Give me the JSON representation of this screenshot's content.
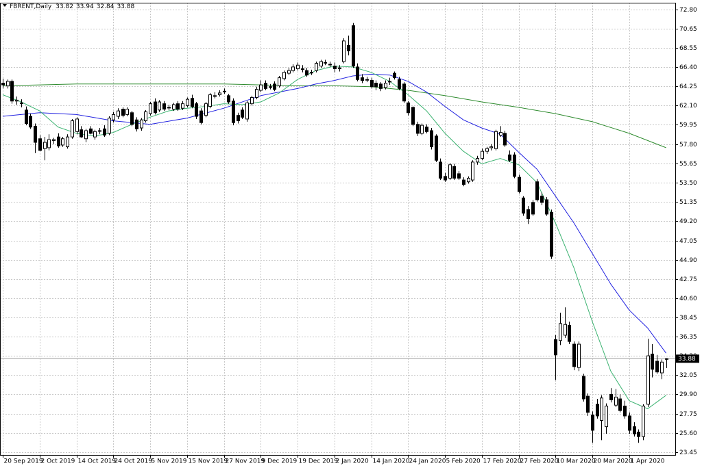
{
  "chart_data": {
    "type": "candlestick",
    "title": "FBRENT,Daily",
    "header_values": [
      33.82,
      33.94,
      32.84,
      33.88
    ],
    "last_price": 33.88,
    "grid": true,
    "up_color": "#ffffff",
    "down_color": "#000000",
    "xlim": [
      -0.6,
      146
    ],
    "ylim": [
      23.15,
      73.56
    ],
    "xticks": [
      {
        "value": 0,
        "label": "20 Sep 2019"
      },
      {
        "value": 8,
        "label": "2 Oct 2019"
      },
      {
        "value": 16,
        "label": "14 Oct 2019"
      },
      {
        "value": 24,
        "label": "24 Oct 2019"
      },
      {
        "value": 32,
        "label": "5 Nov 2019"
      },
      {
        "value": 40,
        "label": "15 Nov 2019"
      },
      {
        "value": 48,
        "label": "27 Nov 2019"
      },
      {
        "value": 56,
        "label": "9 Dec 2019"
      },
      {
        "value": 64,
        "label": "19 Dec 2019"
      },
      {
        "value": 72,
        "label": "2 Jan 2020"
      },
      {
        "value": 80,
        "label": "14 Jan 2020"
      },
      {
        "value": 88,
        "label": "24 Jan 2020"
      },
      {
        "value": 96,
        "label": "5 Feb 2020"
      },
      {
        "value": 104,
        "label": "17 Feb 2020"
      },
      {
        "value": 112,
        "label": "27 Feb 2020"
      },
      {
        "value": 120,
        "label": "10 Mar 2020"
      },
      {
        "value": 128,
        "label": "20 Mar 2020"
      },
      {
        "value": 136,
        "label": "1 Apr 2020"
      }
    ],
    "yticks": [
      {
        "value": 72.8,
        "label": "72.80"
      },
      {
        "value": 70.65,
        "label": "70.65"
      },
      {
        "value": 68.55,
        "label": "68.55"
      },
      {
        "value": 66.4,
        "label": "66.40"
      },
      {
        "value": 64.25,
        "label": "64.25"
      },
      {
        "value": 62.1,
        "label": "62.10"
      },
      {
        "value": 59.95,
        "label": "59.95"
      },
      {
        "value": 57.8,
        "label": "57.80"
      },
      {
        "value": 55.65,
        "label": "55.65"
      },
      {
        "value": 53.5,
        "label": "53.50"
      },
      {
        "value": 51.35,
        "label": "51.35"
      },
      {
        "value": 49.2,
        "label": "49.20"
      },
      {
        "value": 47.05,
        "label": "47.05"
      },
      {
        "value": 44.9,
        "label": "44.90"
      },
      {
        "value": 42.75,
        "label": "42.75"
      },
      {
        "value": 40.6,
        "label": "40.60"
      },
      {
        "value": 38.45,
        "label": "38.45"
      },
      {
        "value": 36.35,
        "label": "36.35"
      },
      {
        "value": 34.2,
        "label": "34.20"
      },
      {
        "value": 32.05,
        "label": "32.05"
      },
      {
        "value": 29.9,
        "label": "29.90"
      },
      {
        "value": 27.75,
        "label": "27.75"
      },
      {
        "value": 25.6,
        "label": "25.60"
      },
      {
        "value": 23.45,
        "label": "23.45"
      }
    ],
    "ohlc": [
      [
        64.6,
        65.1,
        64.0,
        64.4
      ],
      [
        64.3,
        65.0,
        64.0,
        64.8
      ],
      [
        64.8,
        65.0,
        62.3,
        62.6
      ],
      [
        62.6,
        63.1,
        62.2,
        62.7
      ],
      [
        62.4,
        62.8,
        61.9,
        62.3
      ],
      [
        61.6,
        62.0,
        59.9,
        60.1
      ],
      [
        60.9,
        61.2,
        59.5,
        59.7
      ],
      [
        59.8,
        60.1,
        56.8,
        58.0
      ],
      [
        58.4,
        58.8,
        57.0,
        57.1
      ],
      [
        57.3,
        58.6,
        56.0,
        58.0
      ],
      [
        57.4,
        58.9,
        57.1,
        58.3
      ],
      [
        58.2,
        58.5,
        57.8,
        58.3
      ],
      [
        58.6,
        59.0,
        57.4,
        57.6
      ],
      [
        57.7,
        58.6,
        57.5,
        58.4
      ],
      [
        57.5,
        58.9,
        57.3,
        58.6
      ],
      [
        58.6,
        60.6,
        58.4,
        60.4
      ],
      [
        59.2,
        60.8,
        58.9,
        60.6
      ],
      [
        59.4,
        59.8,
        58.5,
        58.6
      ],
      [
        58.4,
        59.5,
        58.0,
        59.3
      ],
      [
        59.5,
        59.8,
        58.9,
        59.0
      ],
      [
        58.6,
        59.4,
        58.3,
        59.2
      ],
      [
        59.3,
        59.6,
        58.9,
        59.3
      ],
      [
        59.5,
        59.9,
        58.6,
        58.8
      ],
      [
        59.0,
        60.9,
        58.8,
        60.7
      ],
      [
        60.5,
        61.4,
        60.2,
        61.1
      ],
      [
        60.9,
        61.8,
        60.6,
        61.5
      ],
      [
        61.7,
        61.9,
        60.8,
        61.0
      ],
      [
        61.1,
        61.9,
        60.9,
        61.7
      ],
      [
        61.3,
        61.5,
        59.8,
        60.0
      ],
      [
        60.5,
        60.8,
        59.2,
        59.5
      ],
      [
        59.6,
        60.7,
        59.3,
        60.5
      ],
      [
        60.4,
        61.6,
        60.2,
        61.4
      ],
      [
        61.2,
        62.5,
        61.0,
        62.3
      ],
      [
        62.5,
        62.9,
        61.1,
        61.3
      ],
      [
        61.6,
        62.7,
        61.4,
        62.5
      ],
      [
        62.3,
        62.6,
        61.5,
        61.7
      ],
      [
        61.9,
        62.2,
        61.6,
        61.9
      ],
      [
        61.7,
        62.4,
        61.5,
        62.2
      ],
      [
        62.3,
        62.6,
        61.5,
        61.7
      ],
      [
        61.8,
        62.6,
        61.6,
        62.3
      ],
      [
        62.1,
        63.0,
        61.9,
        62.8
      ],
      [
        62.9,
        63.3,
        61.8,
        62.0
      ],
      [
        62.3,
        62.5,
        60.6,
        60.9
      ],
      [
        61.5,
        61.8,
        60.0,
        60.2
      ],
      [
        61.0,
        62.5,
        60.8,
        62.3
      ],
      [
        62.0,
        63.5,
        61.8,
        63.3
      ],
      [
        63.2,
        63.6,
        62.9,
        63.2
      ],
      [
        63.3,
        63.8,
        63.1,
        63.5
      ],
      [
        63.7,
        64.0,
        63.4,
        63.7
      ],
      [
        63.2,
        63.4,
        62.3,
        62.5
      ],
      [
        62.6,
        62.9,
        59.9,
        60.2
      ],
      [
        61.0,
        61.3,
        60.1,
        60.4
      ],
      [
        61.6,
        61.9,
        60.6,
        60.8
      ],
      [
        60.6,
        62.6,
        60.3,
        62.4
      ],
      [
        62.3,
        63.2,
        62.1,
        63.0
      ],
      [
        63.0,
        64.2,
        62.8,
        63.9
      ],
      [
        63.8,
        64.9,
        63.6,
        64.4
      ],
      [
        64.6,
        64.9,
        63.8,
        64.0
      ],
      [
        64.2,
        64.5,
        63.9,
        64.2
      ],
      [
        64.5,
        64.8,
        63.7,
        63.9
      ],
      [
        64.3,
        65.4,
        64.1,
        65.2
      ],
      [
        65.1,
        66.0,
        64.9,
        65.8
      ],
      [
        65.7,
        66.3,
        65.5,
        66.0
      ],
      [
        66.0,
        66.7,
        65.8,
        66.4
      ],
      [
        66.2,
        66.9,
        66.0,
        66.6
      ],
      [
        66.2,
        66.6,
        65.8,
        66.2
      ],
      [
        66.0,
        66.3,
        65.3,
        65.5
      ],
      [
        65.8,
        66.1,
        65.5,
        65.8
      ],
      [
        66.0,
        67.0,
        65.8,
        66.8
      ],
      [
        66.5,
        67.2,
        66.3,
        67.0
      ],
      [
        66.9,
        67.2,
        66.6,
        66.9
      ],
      [
        66.7,
        67.0,
        66.4,
        66.7
      ],
      [
        66.5,
        66.9,
        65.8,
        66.2
      ],
      [
        66.2,
        66.6,
        65.9,
        66.3
      ],
      [
        67.0,
        69.6,
        66.8,
        69.3
      ],
      [
        68.8,
        69.9,
        67.7,
        68.2
      ],
      [
        71.0,
        71.3,
        66.3,
        66.5
      ],
      [
        66.4,
        66.8,
        64.8,
        65.0
      ],
      [
        65.2,
        65.6,
        64.6,
        64.9
      ],
      [
        65.0,
        65.3,
        64.7,
        65.0
      ],
      [
        64.9,
        65.2,
        64.0,
        64.2
      ],
      [
        64.6,
        64.9,
        63.8,
        64.2
      ],
      [
        64.5,
        64.7,
        63.7,
        64.0
      ],
      [
        64.1,
        64.9,
        63.9,
        64.6
      ],
      [
        64.8,
        65.2,
        64.4,
        64.8
      ],
      [
        65.7,
        65.9,
        65.0,
        65.2
      ],
      [
        65.0,
        65.3,
        63.8,
        64.0
      ],
      [
        64.5,
        64.7,
        62.4,
        62.6
      ],
      [
        62.4,
        62.6,
        61.0,
        61.3
      ],
      [
        61.9,
        62.0,
        59.8,
        60.0
      ],
      [
        60.0,
        60.3,
        58.7,
        59.0
      ],
      [
        59.0,
        60.1,
        58.8,
        59.9
      ],
      [
        59.7,
        60.0,
        59.0,
        59.2
      ],
      [
        59.3,
        59.6,
        57.2,
        57.5
      ],
      [
        58.7,
        58.9,
        55.8,
        56.0
      ],
      [
        55.8,
        56.2,
        53.8,
        54.0
      ],
      [
        54.2,
        54.6,
        53.6,
        53.8
      ],
      [
        54.0,
        55.7,
        53.8,
        55.5
      ],
      [
        55.3,
        55.6,
        53.8,
        54.0
      ],
      [
        54.5,
        54.8,
        53.8,
        54.0
      ],
      [
        53.8,
        54.1,
        53.1,
        53.3
      ],
      [
        53.6,
        54.2,
        53.4,
        54.0
      ],
      [
        53.8,
        56.0,
        53.6,
        55.8
      ],
      [
        55.8,
        56.5,
        55.5,
        56.2
      ],
      [
        56.2,
        57.3,
        56.0,
        57.0
      ],
      [
        57.0,
        57.5,
        56.7,
        57.3
      ],
      [
        57.4,
        57.8,
        57.1,
        57.5
      ],
      [
        57.3,
        59.4,
        57.1,
        59.2
      ],
      [
        58.8,
        59.8,
        58.6,
        59.1
      ],
      [
        59.0,
        59.3,
        57.5,
        57.7
      ],
      [
        56.6,
        57.1,
        55.8,
        56.0
      ],
      [
        56.6,
        56.9,
        54.0,
        54.2
      ],
      [
        54.1,
        54.4,
        52.3,
        52.5
      ],
      [
        51.8,
        52.0,
        49.8,
        50.1
      ],
      [
        50.5,
        50.9,
        48.9,
        49.5
      ],
      [
        51.3,
        51.6,
        49.8,
        50.0
      ],
      [
        53.6,
        53.9,
        51.4,
        51.6
      ],
      [
        52.0,
        52.4,
        51.0,
        51.3
      ],
      [
        51.6,
        51.9,
        49.8,
        50.0
      ],
      [
        50.2,
        50.5,
        45.0,
        45.3
      ],
      [
        36.0,
        36.5,
        31.5,
        34.3
      ],
      [
        35.9,
        39.0,
        35.4,
        37.8
      ],
      [
        36.5,
        39.6,
        36.2,
        37.7
      ],
      [
        37.6,
        38.0,
        35.5,
        35.8
      ],
      [
        35.5,
        35.8,
        32.6,
        33.0
      ],
      [
        32.9,
        35.8,
        32.5,
        35.5
      ],
      [
        31.9,
        32.2,
        29.1,
        29.4
      ],
      [
        29.7,
        30.0,
        27.5,
        27.9
      ],
      [
        27.6,
        28.0,
        24.5,
        25.9
      ],
      [
        28.8,
        29.4,
        27.2,
        27.5
      ],
      [
        27.0,
        29.8,
        24.8,
        29.5
      ],
      [
        26.3,
        28.9,
        25.5,
        28.6
      ],
      [
        29.9,
        30.6,
        29.0,
        29.3
      ],
      [
        28.7,
        30.5,
        28.5,
        29.6
      ],
      [
        29.4,
        29.9,
        27.9,
        28.1
      ],
      [
        28.6,
        29.2,
        27.2,
        27.5
      ],
      [
        27.5,
        27.9,
        25.5,
        25.9
      ],
      [
        26.3,
        26.8,
        25.2,
        25.5
      ],
      [
        25.7,
        26.0,
        24.5,
        25.2
      ],
      [
        25.2,
        28.8,
        24.8,
        28.6
      ],
      [
        28.8,
        36.1,
        28.5,
        34.2
      ],
      [
        34.4,
        35.5,
        31.8,
        32.7
      ],
      [
        33.6,
        34.3,
        32.2,
        32.4
      ],
      [
        32.3,
        33.8,
        31.6,
        33.5
      ],
      [
        33.82,
        33.94,
        32.84,
        33.88
      ]
    ],
    "lines": [
      {
        "color": "#2e8b2e",
        "x": [
          0,
          8,
          16,
          24,
          32,
          40,
          48,
          56,
          64,
          72,
          80,
          88,
          96,
          104,
          112,
          120,
          128,
          136,
          144
        ],
        "values": [
          64.3,
          64.4,
          64.5,
          64.5,
          64.5,
          64.5,
          64.5,
          64.4,
          64.3,
          64.3,
          64.2,
          63.8,
          63.2,
          62.5,
          61.9,
          61.2,
          60.3,
          59.0,
          57.4
        ]
      },
      {
        "color": "#2020e0",
        "x": [
          0,
          8,
          16,
          24,
          32,
          40,
          48,
          56,
          64,
          68,
          72,
          76,
          80,
          84,
          88,
          92,
          96,
          100,
          104,
          108,
          112,
          116,
          120,
          124,
          128,
          132,
          136,
          140,
          144
        ],
        "values": [
          60.9,
          61.3,
          61.1,
          60.4,
          60.0,
          60.7,
          61.8,
          63.2,
          64.0,
          64.5,
          64.9,
          65.4,
          65.6,
          65.5,
          64.8,
          63.6,
          62.0,
          60.5,
          59.6,
          58.9,
          56.9,
          55.0,
          52.0,
          49.0,
          45.6,
          42.2,
          39.3,
          37.3,
          34.5
        ]
      },
      {
        "color": "#3cb371",
        "x": [
          0,
          4,
          8,
          12,
          16,
          20,
          24,
          28,
          32,
          36,
          40,
          44,
          48,
          52,
          56,
          60,
          64,
          68,
          72,
          76,
          80,
          84,
          88,
          92,
          96,
          100,
          104,
          108,
          112,
          116,
          120,
          124,
          128,
          132,
          136,
          140,
          144
        ],
        "values": [
          63.3,
          62.5,
          61.5,
          59.7,
          59.0,
          58.7,
          59.1,
          60.0,
          60.8,
          61.5,
          61.8,
          62.0,
          62.3,
          62.2,
          62.5,
          63.5,
          65.0,
          66.0,
          66.5,
          66.4,
          65.8,
          64.8,
          63.3,
          61.5,
          59.0,
          57.0,
          55.6,
          56.2,
          55.5,
          53.5,
          49.0,
          44.0,
          38.0,
          32.5,
          29.2,
          28.3,
          29.8
        ]
      }
    ]
  }
}
